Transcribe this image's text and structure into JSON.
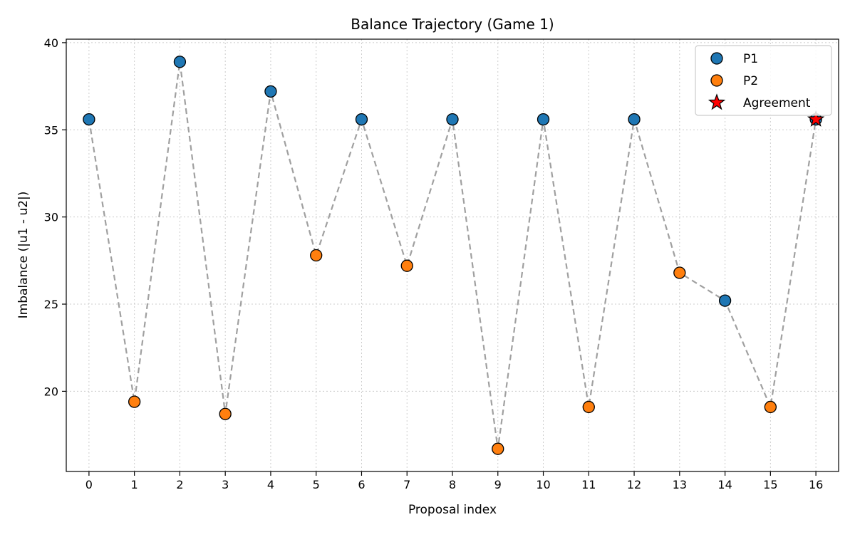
{
  "chart_data": {
    "type": "scatter",
    "title": "Balance Trajectory (Game 1)",
    "xlabel": "Proposal index",
    "ylabel": "Imbalance (|u1 - u2|)",
    "xlim": [
      -0.5,
      16.5
    ],
    "ylim": [
      15.4,
      40.2
    ],
    "x_ticks": [
      "0",
      "1",
      "2",
      "3",
      "4",
      "5",
      "6",
      "7",
      "8",
      "9",
      "10",
      "11",
      "12",
      "13",
      "14",
      "15",
      "16"
    ],
    "y_ticks": [
      "20",
      "25",
      "30",
      "35",
      "40"
    ],
    "grid": true,
    "legend_position": "top-right",
    "connecting_line": {
      "style": "dashed",
      "color": "#a0a0a0"
    },
    "series": [
      {
        "name": "P1",
        "color": "#1f77b4",
        "marker": "circle",
        "points": [
          {
            "x": 0,
            "y": 35.6
          },
          {
            "x": 2,
            "y": 38.9
          },
          {
            "x": 4,
            "y": 37.2
          },
          {
            "x": 6,
            "y": 35.6
          },
          {
            "x": 8,
            "y": 35.6
          },
          {
            "x": 10,
            "y": 35.6
          },
          {
            "x": 12,
            "y": 35.6
          },
          {
            "x": 14,
            "y": 25.2
          },
          {
            "x": 16,
            "y": 35.6
          }
        ]
      },
      {
        "name": "P2",
        "color": "#ff7f0e",
        "marker": "circle",
        "points": [
          {
            "x": 1,
            "y": 19.4
          },
          {
            "x": 3,
            "y": 18.7
          },
          {
            "x": 5,
            "y": 27.8
          },
          {
            "x": 7,
            "y": 27.2
          },
          {
            "x": 9,
            "y": 16.7
          },
          {
            "x": 11,
            "y": 19.1
          },
          {
            "x": 13,
            "y": 26.8
          },
          {
            "x": 15,
            "y": 19.1
          }
        ]
      },
      {
        "name": "Agreement",
        "color": "#ff0000",
        "marker": "star",
        "points": [
          {
            "x": 16,
            "y": 35.6
          }
        ]
      }
    ]
  }
}
